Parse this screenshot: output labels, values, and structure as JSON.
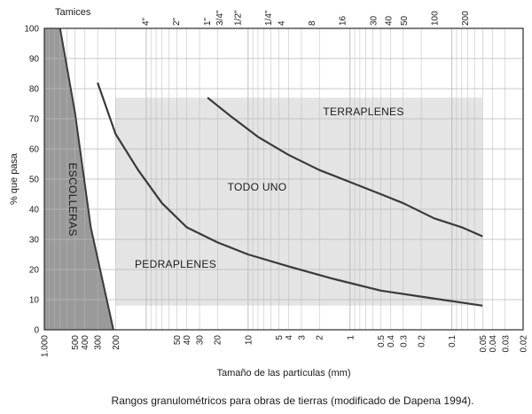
{
  "chart_data": {
    "type": "area",
    "xlabel": "Tamaño de las partículas (mm)",
    "ylabel": "% que pasa",
    "top_axis_label": "Tamices",
    "caption": "Rangos granulométricos para obras de tierras (modificado de Dapena 1994).",
    "x_scale": "log",
    "x_direction": "reversed",
    "xlim": [
      1000,
      0.02
    ],
    "ylim": [
      0,
      100
    ],
    "grid": true,
    "y_ticks": [
      0,
      10,
      20,
      30,
      40,
      50,
      60,
      70,
      80,
      90,
      100
    ],
    "x_ticks": [
      {
        "value": 1000,
        "label": "1.000"
      },
      {
        "value": 500,
        "label": "500"
      },
      {
        "value": 400,
        "label": "400"
      },
      {
        "value": 300,
        "label": "300"
      },
      {
        "value": 200,
        "label": "200"
      },
      {
        "value": 50,
        "label": "50"
      },
      {
        "value": 40,
        "label": "40"
      },
      {
        "value": 30,
        "label": "30"
      },
      {
        "value": 20,
        "label": "20"
      },
      {
        "value": 10,
        "label": "10"
      },
      {
        "value": 5,
        "label": "5"
      },
      {
        "value": 4,
        "label": "4"
      },
      {
        "value": 3,
        "label": "3"
      },
      {
        "value": 2,
        "label": "2"
      },
      {
        "value": 1,
        "label": "1"
      },
      {
        "value": 0.5,
        "label": "0.5"
      },
      {
        "value": 0.4,
        "label": "0.4"
      },
      {
        "value": 0.3,
        "label": "0.3"
      },
      {
        "value": 0.2,
        "label": "0.2"
      },
      {
        "value": 0.1,
        "label": "0.1"
      },
      {
        "value": 0.05,
        "label": "0.05"
      },
      {
        "value": 0.04,
        "label": "0.04"
      },
      {
        "value": 0.03,
        "label": "0.03"
      },
      {
        "value": 0.02,
        "label": "0.02"
      }
    ],
    "sieve_ticks": [
      {
        "value": 101.6,
        "label": "4\""
      },
      {
        "value": 50.8,
        "label": "2\""
      },
      {
        "value": 25.4,
        "label": "1\""
      },
      {
        "value": 19.05,
        "label": "3/4\""
      },
      {
        "value": 12.7,
        "label": "1/2\""
      },
      {
        "value": 6.35,
        "label": "1/4\""
      },
      {
        "value": 4.76,
        "label": "4"
      },
      {
        "value": 2.38,
        "label": "8"
      },
      {
        "value": 1.19,
        "label": "16"
      },
      {
        "value": 0.59,
        "label": "30"
      },
      {
        "value": 0.42,
        "label": "40"
      },
      {
        "value": 0.297,
        "label": "50"
      },
      {
        "value": 0.149,
        "label": "100"
      },
      {
        "value": 0.074,
        "label": "200"
      }
    ],
    "series": [
      {
        "name": "",
        "values": [
          {
            "x": 300,
            "y": 82
          },
          {
            "x": 200,
            "y": 65
          },
          {
            "x": 120,
            "y": 53
          },
          {
            "x": 70,
            "y": 42
          },
          {
            "x": 40,
            "y": 34
          },
          {
            "x": 20,
            "y": 29
          },
          {
            "x": 10,
            "y": 25
          },
          {
            "x": 4,
            "y": 21
          },
          {
            "x": 1.5,
            "y": 17
          },
          {
            "x": 0.5,
            "y": 13
          },
          {
            "x": 0.2,
            "y": 11
          },
          {
            "x": 0.1,
            "y": 9.5
          },
          {
            "x": 0.05,
            "y": 8
          }
        ]
      },
      {
        "name": "",
        "values": [
          {
            "x": 25,
            "y": 77
          },
          {
            "x": 15,
            "y": 71
          },
          {
            "x": 8,
            "y": 64
          },
          {
            "x": 4,
            "y": 58
          },
          {
            "x": 2,
            "y": 53
          },
          {
            "x": 1,
            "y": 49
          },
          {
            "x": 0.5,
            "y": 45
          },
          {
            "x": 0.3,
            "y": 42
          },
          {
            "x": 0.15,
            "y": 37
          },
          {
            "x": 0.08,
            "y": 34
          },
          {
            "x": 0.05,
            "y": 31
          }
        ]
      }
    ],
    "regions": [
      {
        "label": "ESCOLLERAS",
        "color": "#9a9a9a",
        "boundary": [
          {
            "x": 700,
            "y": 100
          },
          {
            "x": 500,
            "y": 72
          },
          {
            "x": 350,
            "y": 34
          },
          {
            "x": 210,
            "y": 0
          }
        ]
      },
      {
        "label": "TODO UNO",
        "color": "#e4e4e4",
        "bounds": {
          "x": [
            200,
            0.05
          ],
          "y": [
            8,
            77
          ]
        }
      },
      {
        "label": "PEDRAPLENES",
        "color": "#f7f7f7"
      },
      {
        "label": "TERRAPLENES",
        "color": "#ffffff"
      }
    ],
    "colors": {
      "line": "#3a3a3a",
      "grid": "#b8b8b8",
      "frame": "#2a2a2a"
    }
  }
}
